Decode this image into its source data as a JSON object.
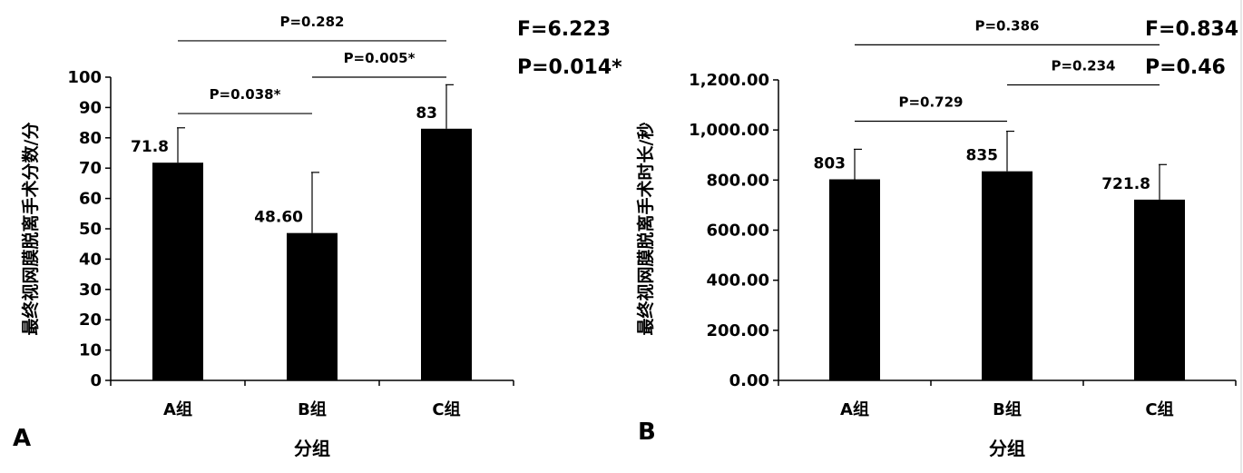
{
  "chart_data": [
    {
      "type": "bar",
      "panel_label": "A",
      "categories": [
        "A组",
        "B组",
        "C组"
      ],
      "values": [
        71.8,
        48.6,
        83
      ],
      "error": [
        11.5,
        20,
        14.5
      ],
      "data_labels": [
        "71.8",
        "48.60",
        "83"
      ],
      "xlabel": "分组",
      "ylabel": "最终视网膜脱离手术分数/分",
      "ylim": [
        0,
        100
      ],
      "yticks": [
        0,
        10,
        20,
        30,
        40,
        50,
        60,
        70,
        80,
        90,
        100
      ],
      "ytick_labels": [
        "0",
        "10",
        "20",
        "30",
        "40",
        "50",
        "60",
        "70",
        "80",
        "90",
        "100"
      ],
      "comparisons": [
        {
          "from": 0,
          "to": 1,
          "label": "P=0.038*",
          "level": 88
        },
        {
          "from": 1,
          "to": 2,
          "label": "P=0.005*",
          "level": 100
        },
        {
          "from": 0,
          "to": 2,
          "label": "P=0.282",
          "level": 112
        }
      ],
      "stats": [
        "F=6.223",
        "P=0.014*"
      ],
      "bar_color": "#000000",
      "grid": false
    },
    {
      "type": "bar",
      "panel_label": "B",
      "categories": [
        "A组",
        "B组",
        "C组"
      ],
      "values": [
        803,
        835,
        721.8
      ],
      "error": [
        120,
        160,
        140
      ],
      "data_labels": [
        "803",
        "835",
        "721.8"
      ],
      "xlabel": "分组",
      "ylabel": "最终视网膜脱离手术时长/秒",
      "ylim": [
        0,
        1200
      ],
      "yticks": [
        0,
        200,
        400,
        600,
        800,
        1000,
        1200
      ],
      "ytick_labels": [
        "0.00",
        "200.00",
        "400.00",
        "600.00",
        "800.00",
        "1,000.00",
        "1,200.00"
      ],
      "comparisons": [
        {
          "from": 0,
          "to": 1,
          "label": "P=0.729",
          "level": 1035
        },
        {
          "from": 1,
          "to": 2,
          "label": "P=0.234",
          "level": 1180
        },
        {
          "from": 0,
          "to": 2,
          "label": "P=0.386",
          "level": 1340
        }
      ],
      "stats": [
        "F=0.834",
        "P=0.46"
      ],
      "bar_color": "#000000",
      "grid": false
    }
  ]
}
